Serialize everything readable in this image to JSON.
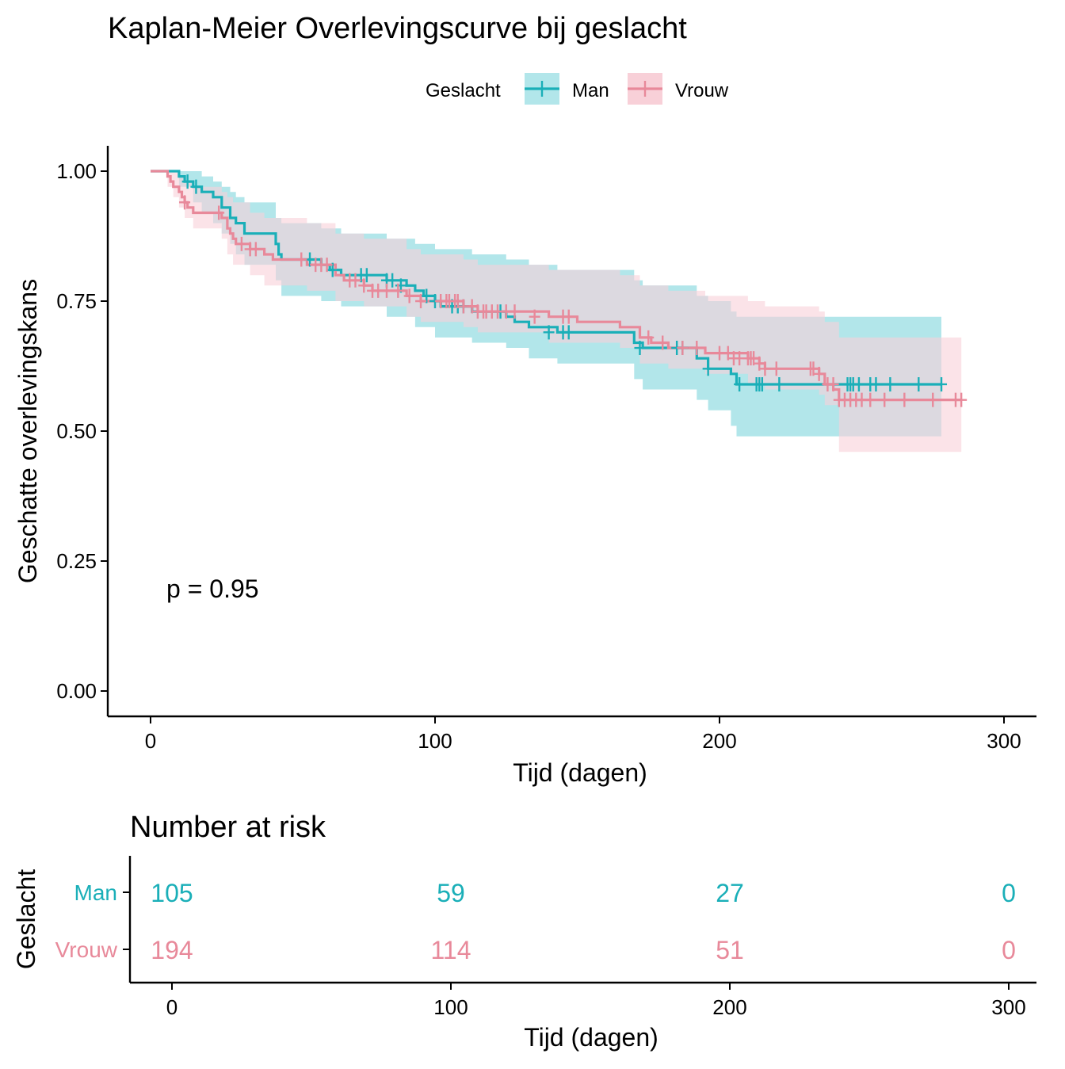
{
  "chart_data": {
    "type": "line",
    "title": "Kaplan-Meier Overlevingscurve bij geslacht",
    "legend": {
      "title": "Geslacht",
      "position": "top"
    },
    "xlabel": "Tijd (dagen)",
    "ylabel": "Geschatte overlevingskans",
    "xlim": [
      -15,
      310
    ],
    "ylim": [
      -0.05,
      1.05
    ],
    "xticks": [
      0,
      100,
      200,
      300
    ],
    "yticks": [
      0.0,
      0.25,
      0.5,
      0.75,
      1.0
    ],
    "ytick_labels": [
      "0.00",
      "0.25",
      "0.50",
      "0.75",
      "1.00"
    ],
    "annotation": "p = 0.95",
    "series": [
      {
        "name": "Man",
        "color": "#1aafb8",
        "band_color": "#b2e6ea",
        "steps": [
          [
            0,
            1.0
          ],
          [
            10,
            0.99
          ],
          [
            12,
            0.98
          ],
          [
            15,
            0.97
          ],
          [
            18,
            0.96
          ],
          [
            22,
            0.95
          ],
          [
            25,
            0.93
          ],
          [
            28,
            0.91
          ],
          [
            30,
            0.9
          ],
          [
            33,
            0.88
          ],
          [
            44,
            0.86
          ],
          [
            45,
            0.84
          ],
          [
            46,
            0.83
          ],
          [
            60,
            0.82
          ],
          [
            63,
            0.81
          ],
          [
            67,
            0.8
          ],
          [
            83,
            0.79
          ],
          [
            90,
            0.78
          ],
          [
            93,
            0.77
          ],
          [
            96,
            0.76
          ],
          [
            100,
            0.75
          ],
          [
            102,
            0.74
          ],
          [
            113,
            0.73
          ],
          [
            125,
            0.72
          ],
          [
            128,
            0.71
          ],
          [
            133,
            0.7
          ],
          [
            143,
            0.69
          ],
          [
            170,
            0.67
          ],
          [
            173,
            0.66
          ],
          [
            192,
            0.64
          ],
          [
            196,
            0.62
          ],
          [
            204,
            0.61
          ],
          [
            206,
            0.59
          ],
          [
            278,
            0.59
          ]
        ],
        "upper": [
          [
            0,
            1.0
          ],
          [
            10,
            1.0
          ],
          [
            15,
            1.0
          ],
          [
            18,
            0.99
          ],
          [
            22,
            0.98
          ],
          [
            25,
            0.97
          ],
          [
            28,
            0.96
          ],
          [
            30,
            0.95
          ],
          [
            33,
            0.94
          ],
          [
            44,
            0.91
          ],
          [
            46,
            0.9
          ],
          [
            60,
            0.89
          ],
          [
            67,
            0.88
          ],
          [
            83,
            0.87
          ],
          [
            93,
            0.86
          ],
          [
            100,
            0.85
          ],
          [
            113,
            0.84
          ],
          [
            125,
            0.83
          ],
          [
            133,
            0.82
          ],
          [
            143,
            0.81
          ],
          [
            170,
            0.79
          ],
          [
            173,
            0.78
          ],
          [
            192,
            0.76
          ],
          [
            196,
            0.75
          ],
          [
            204,
            0.73
          ],
          [
            206,
            0.72
          ],
          [
            278,
            0.72
          ]
        ],
        "lower": [
          [
            0,
            1.0
          ],
          [
            10,
            0.97
          ],
          [
            15,
            0.94
          ],
          [
            18,
            0.92
          ],
          [
            22,
            0.9
          ],
          [
            25,
            0.88
          ],
          [
            28,
            0.86
          ],
          [
            30,
            0.84
          ],
          [
            33,
            0.82
          ],
          [
            44,
            0.79
          ],
          [
            46,
            0.76
          ],
          [
            60,
            0.75
          ],
          [
            67,
            0.74
          ],
          [
            83,
            0.72
          ],
          [
            93,
            0.7
          ],
          [
            100,
            0.68
          ],
          [
            113,
            0.67
          ],
          [
            125,
            0.66
          ],
          [
            133,
            0.64
          ],
          [
            143,
            0.63
          ],
          [
            170,
            0.6
          ],
          [
            173,
            0.58
          ],
          [
            192,
            0.56
          ],
          [
            196,
            0.54
          ],
          [
            204,
            0.51
          ],
          [
            206,
            0.49
          ],
          [
            278,
            0.49
          ]
        ],
        "censored": [
          [
            13,
            0.98
          ],
          [
            16,
            0.97
          ],
          [
            56,
            0.83
          ],
          [
            64,
            0.81
          ],
          [
            74,
            0.8
          ],
          [
            76,
            0.8
          ],
          [
            83,
            0.79
          ],
          [
            85,
            0.79
          ],
          [
            88,
            0.78
          ],
          [
            97,
            0.76
          ],
          [
            100,
            0.75
          ],
          [
            106,
            0.74
          ],
          [
            108,
            0.74
          ],
          [
            110,
            0.74
          ],
          [
            123,
            0.73
          ],
          [
            140,
            0.69
          ],
          [
            145,
            0.69
          ],
          [
            147,
            0.69
          ],
          [
            172,
            0.66
          ],
          [
            185,
            0.66
          ],
          [
            187,
            0.66
          ],
          [
            196,
            0.62
          ],
          [
            207,
            0.59
          ],
          [
            213,
            0.59
          ],
          [
            214,
            0.59
          ],
          [
            215,
            0.59
          ],
          [
            221,
            0.59
          ],
          [
            245,
            0.59
          ],
          [
            246,
            0.59
          ],
          [
            247,
            0.59
          ],
          [
            249,
            0.59
          ],
          [
            253,
            0.59
          ],
          [
            255,
            0.59
          ],
          [
            260,
            0.59
          ],
          [
            270,
            0.59
          ],
          [
            278,
            0.59
          ]
        ]
      },
      {
        "name": "Vrouw",
        "color": "#e8899a",
        "band_color": "#f8d0d8",
        "steps": [
          [
            0,
            1.0
          ],
          [
            6,
            0.99
          ],
          [
            7,
            0.98
          ],
          [
            8,
            0.97
          ],
          [
            10,
            0.96
          ],
          [
            11,
            0.95
          ],
          [
            12,
            0.94
          ],
          [
            13,
            0.93
          ],
          [
            15,
            0.92
          ],
          [
            25,
            0.91
          ],
          [
            27,
            0.89
          ],
          [
            28,
            0.88
          ],
          [
            29,
            0.87
          ],
          [
            30,
            0.86
          ],
          [
            35,
            0.85
          ],
          [
            40,
            0.84
          ],
          [
            43,
            0.83
          ],
          [
            55,
            0.82
          ],
          [
            65,
            0.8
          ],
          [
            68,
            0.79
          ],
          [
            75,
            0.78
          ],
          [
            78,
            0.77
          ],
          [
            90,
            0.76
          ],
          [
            95,
            0.75
          ],
          [
            110,
            0.74
          ],
          [
            115,
            0.73
          ],
          [
            140,
            0.72
          ],
          [
            150,
            0.71
          ],
          [
            165,
            0.7
          ],
          [
            172,
            0.68
          ],
          [
            176,
            0.67
          ],
          [
            182,
            0.66
          ],
          [
            195,
            0.65
          ],
          [
            210,
            0.64
          ],
          [
            214,
            0.63
          ],
          [
            216,
            0.62
          ],
          [
            235,
            0.61
          ],
          [
            237,
            0.59
          ],
          [
            240,
            0.58
          ],
          [
            242,
            0.56
          ],
          [
            285,
            0.56
          ]
        ],
        "upper": [
          [
            0,
            1.0
          ],
          [
            6,
            1.0
          ],
          [
            10,
            0.99
          ],
          [
            12,
            0.98
          ],
          [
            15,
            0.97
          ],
          [
            25,
            0.96
          ],
          [
            27,
            0.95
          ],
          [
            29,
            0.94
          ],
          [
            35,
            0.92
          ],
          [
            40,
            0.91
          ],
          [
            55,
            0.9
          ],
          [
            65,
            0.88
          ],
          [
            75,
            0.87
          ],
          [
            90,
            0.85
          ],
          [
            95,
            0.84
          ],
          [
            110,
            0.83
          ],
          [
            115,
            0.82
          ],
          [
            140,
            0.81
          ],
          [
            165,
            0.8
          ],
          [
            172,
            0.78
          ],
          [
            182,
            0.77
          ],
          [
            195,
            0.76
          ],
          [
            210,
            0.75
          ],
          [
            216,
            0.74
          ],
          [
            235,
            0.73
          ],
          [
            237,
            0.71
          ],
          [
            242,
            0.68
          ],
          [
            285,
            0.68
          ]
        ],
        "lower": [
          [
            0,
            1.0
          ],
          [
            6,
            0.97
          ],
          [
            8,
            0.95
          ],
          [
            10,
            0.93
          ],
          [
            12,
            0.91
          ],
          [
            15,
            0.89
          ],
          [
            25,
            0.87
          ],
          [
            27,
            0.84
          ],
          [
            29,
            0.82
          ],
          [
            35,
            0.8
          ],
          [
            40,
            0.78
          ],
          [
            55,
            0.77
          ],
          [
            65,
            0.75
          ],
          [
            75,
            0.74
          ],
          [
            90,
            0.72
          ],
          [
            95,
            0.71
          ],
          [
            110,
            0.7
          ],
          [
            115,
            0.69
          ],
          [
            140,
            0.67
          ],
          [
            165,
            0.66
          ],
          [
            172,
            0.63
          ],
          [
            182,
            0.62
          ],
          [
            195,
            0.61
          ],
          [
            210,
            0.59
          ],
          [
            216,
            0.58
          ],
          [
            235,
            0.57
          ],
          [
            237,
            0.55
          ],
          [
            242,
            0.46
          ],
          [
            285,
            0.46
          ]
        ],
        "censored": [
          [
            12,
            0.94
          ],
          [
            24,
            0.92
          ],
          [
            32,
            0.86
          ],
          [
            35,
            0.85
          ],
          [
            37,
            0.85
          ],
          [
            53,
            0.83
          ],
          [
            58,
            0.82
          ],
          [
            60,
            0.82
          ],
          [
            62,
            0.82
          ],
          [
            70,
            0.79
          ],
          [
            72,
            0.79
          ],
          [
            75,
            0.78
          ],
          [
            78,
            0.77
          ],
          [
            80,
            0.77
          ],
          [
            83,
            0.77
          ],
          [
            87,
            0.77
          ],
          [
            91,
            0.76
          ],
          [
            95,
            0.75
          ],
          [
            102,
            0.75
          ],
          [
            104,
            0.75
          ],
          [
            105,
            0.75
          ],
          [
            107,
            0.75
          ],
          [
            108,
            0.75
          ],
          [
            110,
            0.74
          ],
          [
            113,
            0.74
          ],
          [
            115,
            0.73
          ],
          [
            117,
            0.73
          ],
          [
            118,
            0.73
          ],
          [
            120,
            0.73
          ],
          [
            122,
            0.73
          ],
          [
            125,
            0.73
          ],
          [
            128,
            0.73
          ],
          [
            135,
            0.72
          ],
          [
            145,
            0.72
          ],
          [
            147,
            0.72
          ],
          [
            175,
            0.68
          ],
          [
            180,
            0.67
          ],
          [
            187,
            0.66
          ],
          [
            192,
            0.66
          ],
          [
            200,
            0.65
          ],
          [
            203,
            0.65
          ],
          [
            205,
            0.64
          ],
          [
            207,
            0.64
          ],
          [
            210,
            0.64
          ],
          [
            211,
            0.64
          ],
          [
            212,
            0.64
          ],
          [
            214,
            0.63
          ],
          [
            216,
            0.62
          ],
          [
            220,
            0.62
          ],
          [
            232,
            0.62
          ],
          [
            233,
            0.62
          ],
          [
            235,
            0.61
          ],
          [
            238,
            0.59
          ],
          [
            240,
            0.59
          ],
          [
            242,
            0.56
          ],
          [
            244,
            0.56
          ],
          [
            246,
            0.56
          ],
          [
            248,
            0.56
          ],
          [
            250,
            0.56
          ],
          [
            253,
            0.56
          ],
          [
            258,
            0.56
          ],
          [
            265,
            0.56
          ],
          [
            275,
            0.56
          ],
          [
            283,
            0.56
          ],
          [
            285,
            0.56
          ]
        ]
      }
    ]
  },
  "risk_table": {
    "title": "Number at risk",
    "ylabel": "Geslacht",
    "xlabel": "Tijd (dagen)",
    "xticks": [
      0,
      100,
      200,
      300
    ],
    "times": [
      0,
      100,
      200,
      300
    ],
    "rows": [
      {
        "label": "Man",
        "color": "#1aafb8",
        "counts": [
          "105",
          "59",
          "27",
          "0"
        ]
      },
      {
        "label": "Vrouw",
        "color": "#e8899a",
        "counts": [
          "194",
          "114",
          "51",
          "0"
        ]
      }
    ]
  }
}
